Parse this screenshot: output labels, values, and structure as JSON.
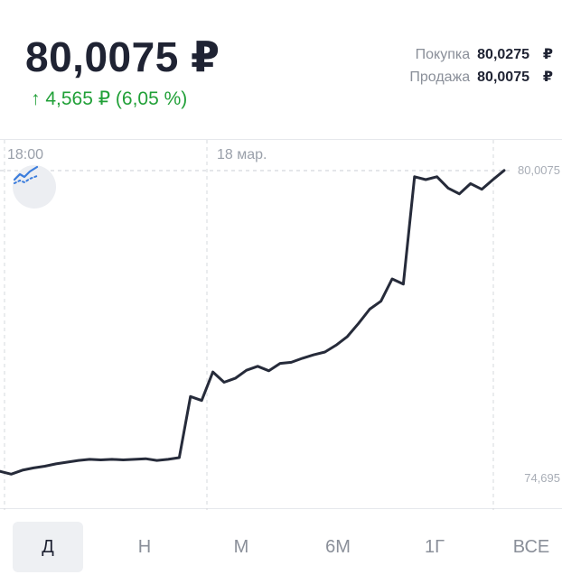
{
  "header": {
    "price": "80,0075 ₽",
    "change": "↑ 4,565 ₽ (6,05 %)",
    "quotes": [
      {
        "label": "Покупка",
        "value": "80,0275",
        "currency": "₽"
      },
      {
        "label": "Продажа",
        "value": "80,0075",
        "currency": "₽"
      }
    ],
    "change_color": "#21a038"
  },
  "chart": {
    "time_labels": [
      "18:00",
      "18 мар."
    ],
    "y_max_label": "80,0075",
    "y_min_label": "74,695",
    "indicator_icon": "chart-indicator-icon",
    "line_color": "#262b3a"
  },
  "chart_data": {
    "type": "line",
    "x_tick_labels": [
      "18:00",
      "18 мар."
    ],
    "ylim": [
      74.695,
      80.0075
    ],
    "grid": true,
    "series": [
      {
        "values": [
          74.74,
          74.69,
          74.76,
          74.8,
          74.83,
          74.87,
          74.9,
          74.93,
          74.95,
          74.94,
          74.95,
          74.94,
          74.95,
          74.96,
          74.93,
          74.95,
          74.98,
          76.05,
          75.98,
          76.48,
          76.3,
          76.37,
          76.51,
          76.58,
          76.5,
          76.63,
          76.65,
          76.72,
          76.78,
          76.83,
          76.95,
          77.1,
          77.33,
          77.58,
          77.72,
          78.11,
          78.02,
          79.9,
          79.85,
          79.9,
          79.7,
          79.6,
          79.78,
          79.68,
          79.85,
          80.01
        ]
      }
    ]
  },
  "periods": {
    "items": [
      "Д",
      "Н",
      "М",
      "6М",
      "1Г",
      "ВСЕ"
    ],
    "active": "Д"
  }
}
